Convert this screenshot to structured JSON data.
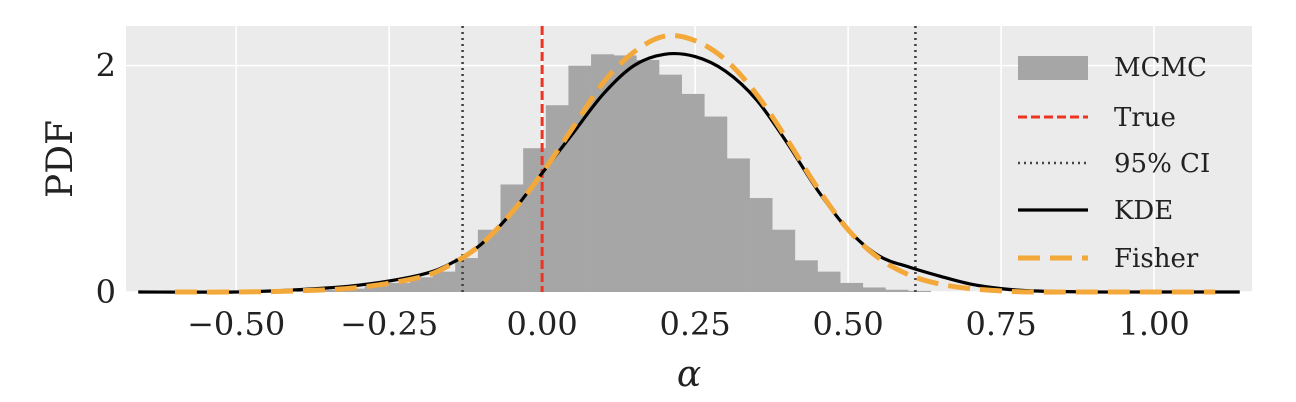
{
  "chart_data": {
    "type": "bar",
    "xlabel": "α",
    "ylabel": "PDF",
    "xlim": [
      -0.68,
      1.16
    ],
    "ylim": [
      0,
      2.35
    ],
    "xticks": [
      -0.5,
      -0.25,
      0.0,
      0.25,
      0.5,
      0.75,
      1.0
    ],
    "xtick_labels": [
      "−0.50",
      "−0.25",
      "0.00",
      "0.25",
      "0.50",
      "0.75",
      "1.00"
    ],
    "yticks": [
      0,
      2
    ],
    "ytick_labels": [
      "0",
      "2"
    ],
    "grid": true,
    "legend_position": "right",
    "histogram": {
      "name": "MCMC",
      "color": "#a6a6a6",
      "bin_width": 0.037,
      "bin_edges_start": -0.66,
      "heights": [
        0.0,
        0.0,
        0.0,
        0.0,
        0.0,
        0.0,
        0.0,
        0.01,
        0.02,
        0.03,
        0.05,
        0.08,
        0.13,
        0.18,
        0.3,
        0.55,
        0.95,
        1.27,
        1.65,
        2.0,
        2.1,
        2.09,
        2.05,
        1.92,
        1.75,
        1.55,
        1.18,
        0.83,
        0.55,
        0.28,
        0.18,
        0.08,
        0.04,
        0.02,
        0.01,
        0.0,
        0.0,
        0.0,
        0.0,
        0.0,
        0.0,
        0.0,
        0.0,
        0.0,
        0.0,
        0.0,
        0.0,
        0.0,
        0.0,
        0.0
      ]
    },
    "true_value": {
      "name": "True",
      "x": 0.0,
      "color": "#ee3322"
    },
    "ci95": {
      "name": "95% CI",
      "lower": -0.13,
      "upper": 0.61,
      "color": "#444444"
    },
    "kde": {
      "name": "KDE",
      "color": "#000000",
      "x": [
        -0.66,
        -0.5,
        -0.4,
        -0.3,
        -0.2,
        -0.15,
        -0.1,
        -0.05,
        0.0,
        0.05,
        0.1,
        0.15,
        0.2,
        0.25,
        0.3,
        0.35,
        0.4,
        0.45,
        0.5,
        0.55,
        0.6,
        0.65,
        0.7,
        0.75,
        0.8,
        0.9,
        1.0,
        1.14
      ],
      "y": [
        0.0,
        0.0,
        0.02,
        0.06,
        0.15,
        0.25,
        0.42,
        0.7,
        1.05,
        1.4,
        1.75,
        2.0,
        2.1,
        2.08,
        1.95,
        1.7,
        1.32,
        0.9,
        0.55,
        0.32,
        0.22,
        0.14,
        0.07,
        0.03,
        0.01,
        0.0,
        0.0,
        0.0
      ]
    },
    "fisher": {
      "name": "Fisher",
      "color": "#f3a83a",
      "x": [
        -0.6,
        -0.5,
        -0.4,
        -0.3,
        -0.2,
        -0.15,
        -0.1,
        -0.05,
        0.0,
        0.05,
        0.1,
        0.15,
        0.2,
        0.25,
        0.3,
        0.35,
        0.4,
        0.45,
        0.5,
        0.55,
        0.6,
        0.65,
        0.7,
        0.75,
        0.8,
        0.9,
        1.0,
        1.1
      ],
      "y": [
        0.0,
        0.0,
        0.01,
        0.04,
        0.13,
        0.24,
        0.42,
        0.7,
        1.05,
        1.45,
        1.85,
        2.12,
        2.26,
        2.22,
        2.05,
        1.75,
        1.35,
        0.92,
        0.55,
        0.3,
        0.15,
        0.07,
        0.03,
        0.01,
        0.0,
        0.0,
        0.0,
        0.0
      ]
    },
    "legend": [
      "MCMC",
      "True",
      "95% CI",
      "KDE",
      "Fisher"
    ]
  }
}
